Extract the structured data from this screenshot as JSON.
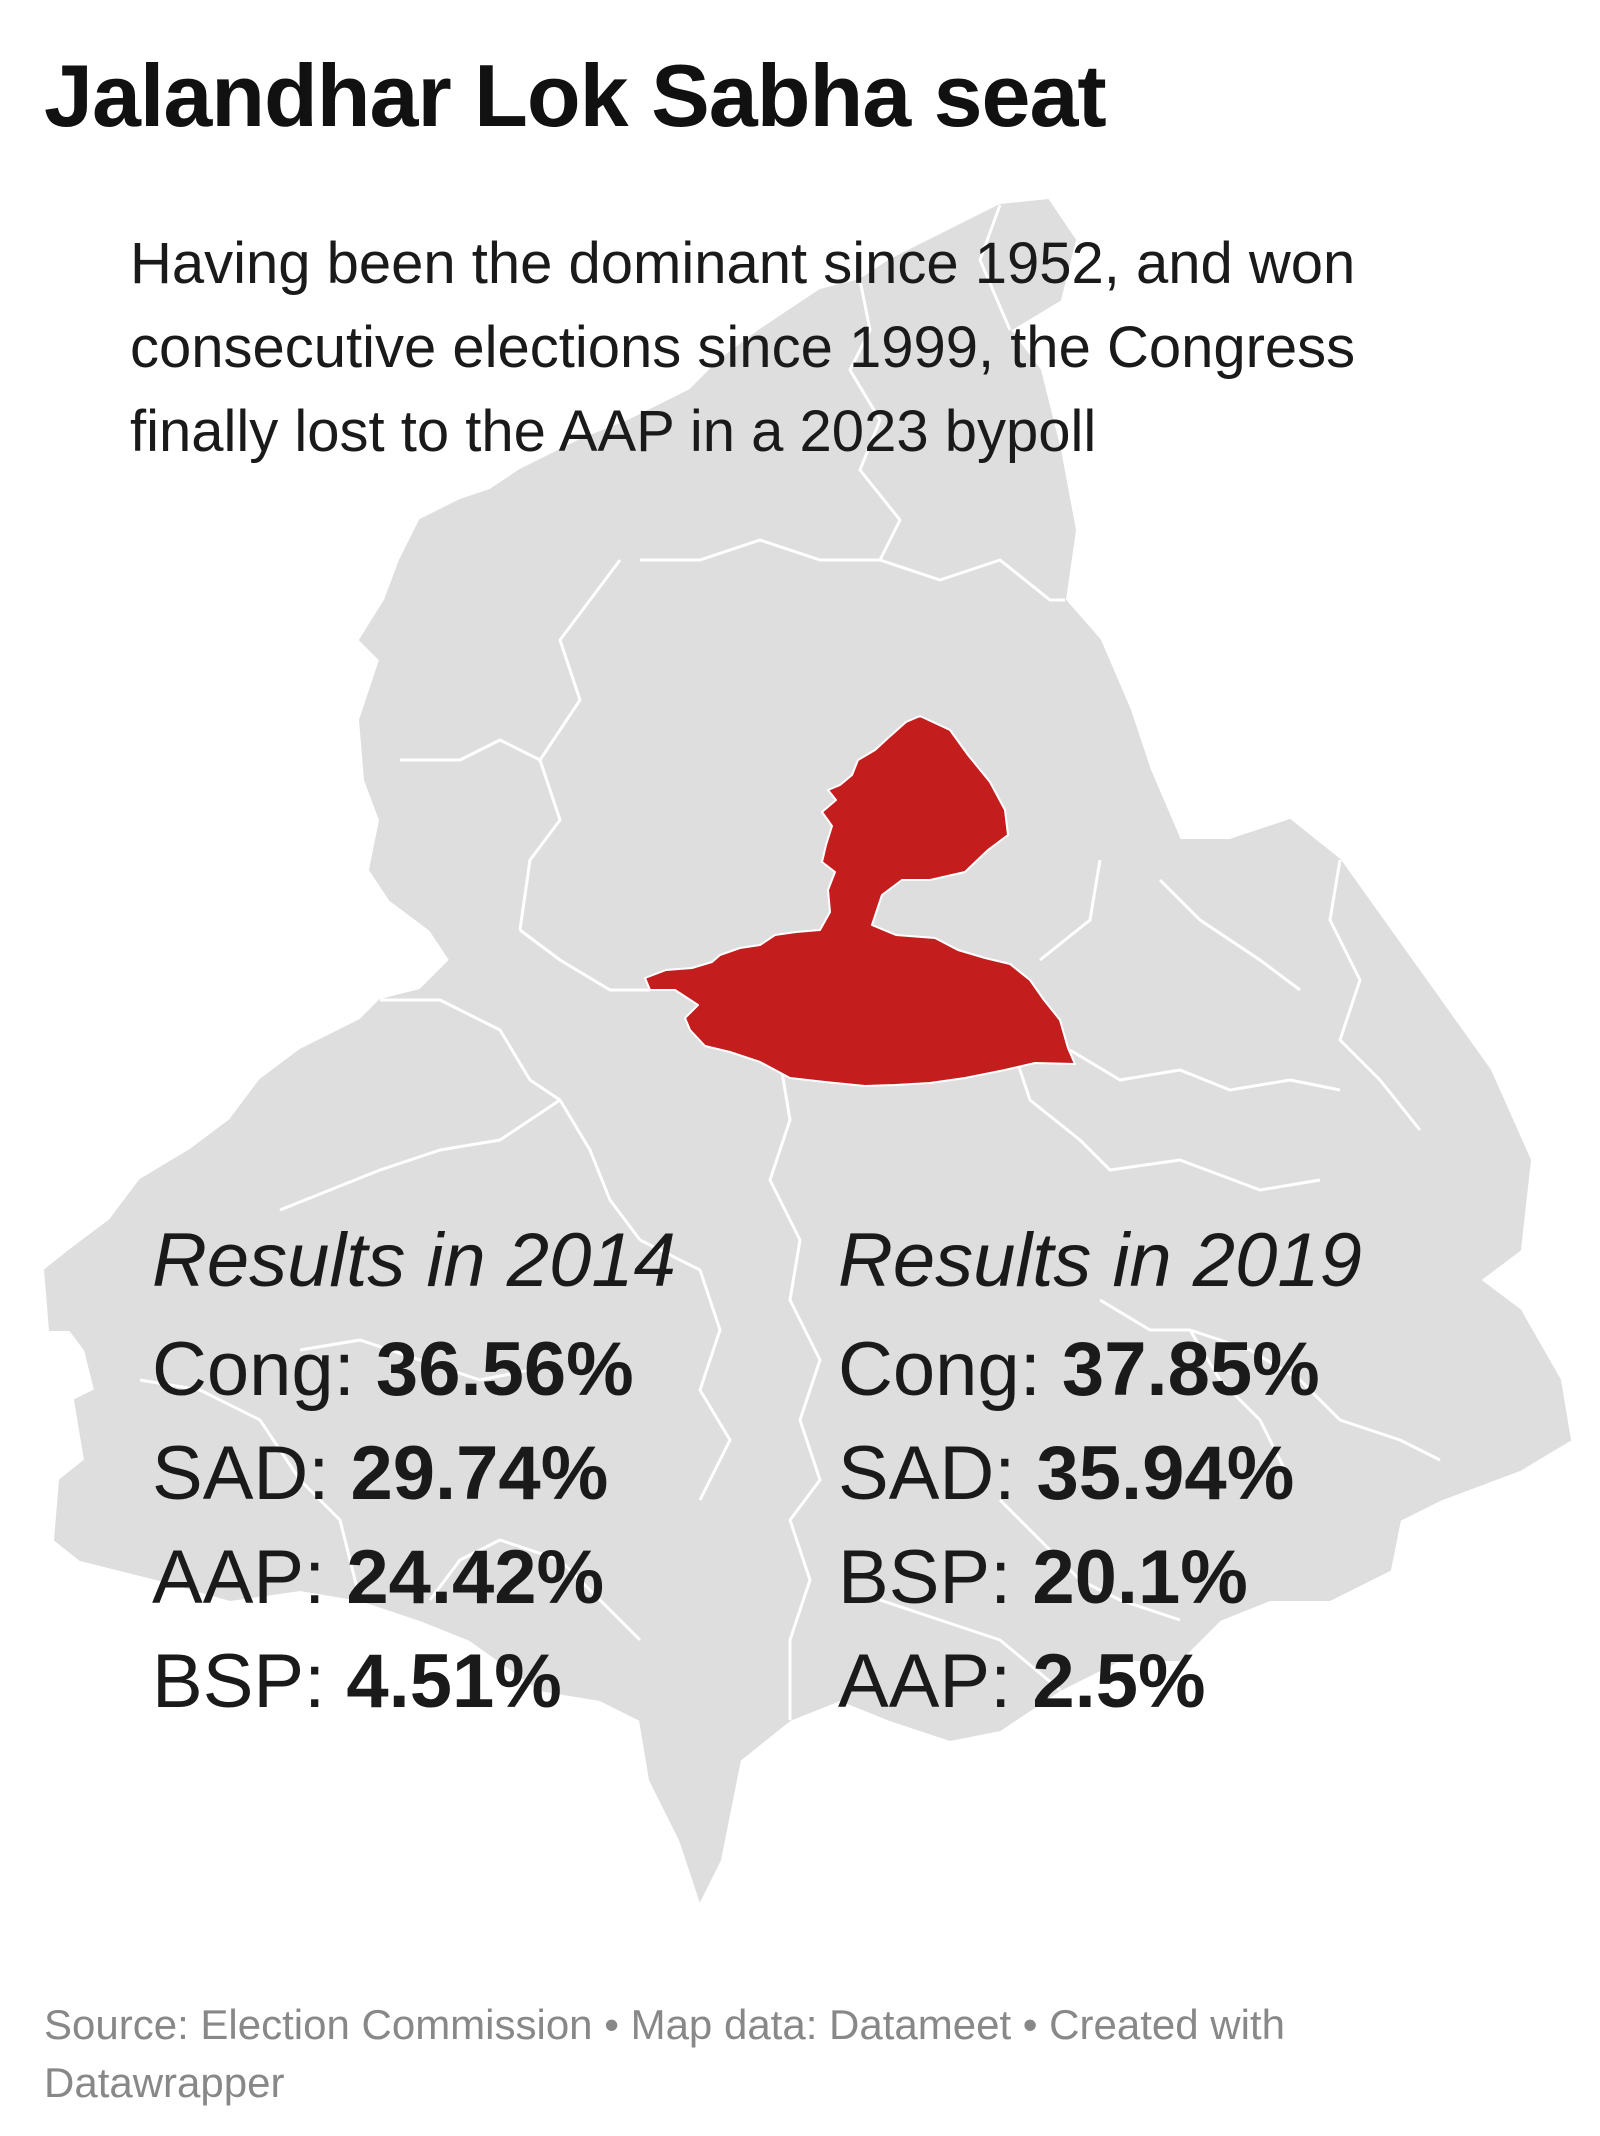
{
  "title": "Jalandhar Lok Sabha seat",
  "description": "Having been the dominant since 1952, and won consecutive elections since 1999, the Congress finally lost to the AAP in a 2023 bypoll",
  "map": {
    "region": "Punjab",
    "highlighted_constituency": "Jalandhar",
    "colors": {
      "base": "#dedede",
      "borders": "#ffffff",
      "highlight": "#c41d1d"
    }
  },
  "results": [
    {
      "heading": "Results in 2014",
      "rows": [
        {
          "party": "Cong",
          "sep": ": ",
          "value": "36.56%"
        },
        {
          "party": "SAD",
          "sep": ": ",
          "value": "29.74%"
        },
        {
          "party": "AAP",
          "sep": ": ",
          "value": "24.42%"
        },
        {
          "party": "BSP",
          "sep": ": ",
          "value": "4.51%"
        }
      ]
    },
    {
      "heading": "Results in 2019",
      "rows": [
        {
          "party": "Cong",
          "sep": ": ",
          "value": "37.85%"
        },
        {
          "party": "SAD",
          "sep": ": ",
          "value": "35.94%"
        },
        {
          "party": "BSP",
          "sep": ": ",
          "value": "20.1%"
        },
        {
          "party": "AAP",
          "sep": ": ",
          "value": "2.5%"
        }
      ]
    }
  ],
  "footer": "Source: Election Commission • Map data: Datameet • Created with Datawrapper"
}
